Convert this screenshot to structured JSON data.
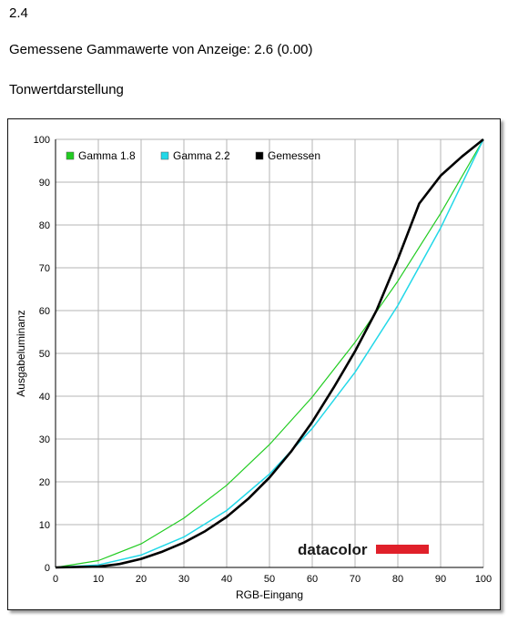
{
  "header": {
    "section": "2.4",
    "gamma_line": "Gemessene Gammawerte von Anzeige: 2.6 (0.00)",
    "chart_heading": "Tonwertdarstellung"
  },
  "brand": {
    "name": "datacolor",
    "bar_color": "#e0202a"
  },
  "chart_data": {
    "type": "line",
    "title": "",
    "xlabel": "RGB-Eingang",
    "ylabel": "Ausgabeluminanz",
    "xlim": [
      0,
      100
    ],
    "ylim": [
      0,
      100
    ],
    "xticks": [
      0,
      10,
      20,
      30,
      40,
      50,
      60,
      70,
      80,
      90,
      100
    ],
    "yticks": [
      0,
      10,
      20,
      30,
      40,
      50,
      60,
      70,
      80,
      90,
      100
    ],
    "grid": true,
    "legend_position": "top-left",
    "series": [
      {
        "name": "Gamma 1.8",
        "color": "#22cc22",
        "x": [
          0,
          10,
          20,
          30,
          40,
          50,
          60,
          70,
          80,
          90,
          100
        ],
        "y": [
          0,
          1.6,
          5.5,
          11.5,
          19.2,
          28.7,
          39.8,
          52.6,
          66.9,
          82.7,
          100
        ]
      },
      {
        "name": "Gamma 2.2",
        "color": "#22d8e8",
        "x": [
          0,
          10,
          20,
          30,
          40,
          50,
          60,
          70,
          80,
          90,
          100
        ],
        "y": [
          0,
          0.6,
          2.9,
          7.1,
          13.3,
          21.8,
          32.5,
          45.6,
          61.2,
          79.3,
          100
        ]
      },
      {
        "name": "Gemessen",
        "color": "#000000",
        "x": [
          0,
          10,
          15,
          20,
          25,
          30,
          35,
          40,
          45,
          50,
          55,
          60,
          65,
          70,
          75,
          80,
          85,
          90,
          95,
          100
        ],
        "y": [
          0,
          0.2,
          0.8,
          2.0,
          3.7,
          5.8,
          8.5,
          11.8,
          16.0,
          21.0,
          27.0,
          34.0,
          42.0,
          50.5,
          60.0,
          72.0,
          85.0,
          91.5,
          96.0,
          100
        ]
      }
    ]
  }
}
